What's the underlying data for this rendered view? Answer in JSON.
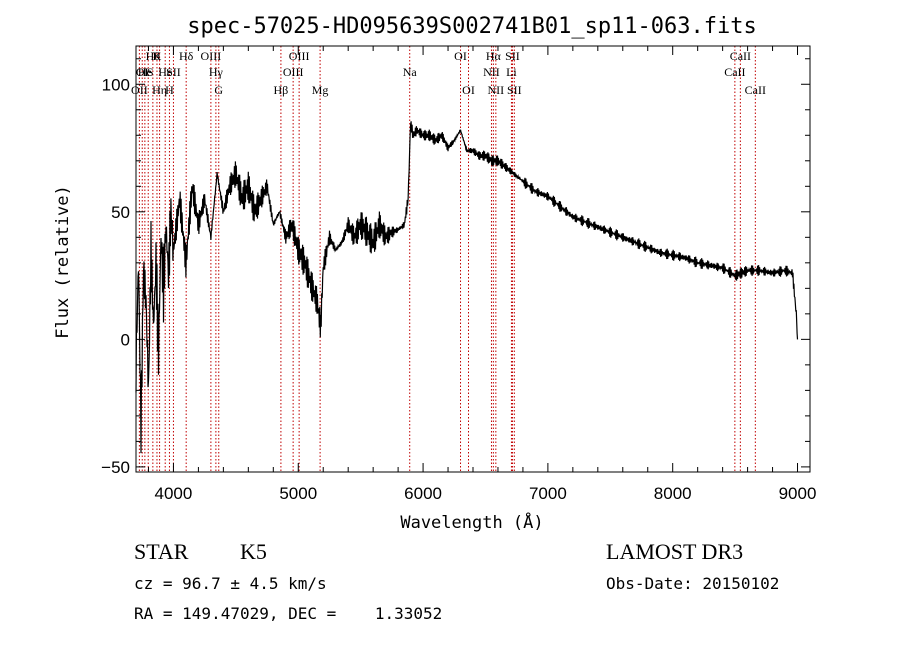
{
  "chart_data": {
    "type": "line",
    "title": "spec-57025-HD095639S002741B01_sp11-063.fits",
    "xlabel": "Wavelength (Å)",
    "ylabel": "Flux (relative)",
    "xlim": [
      3700,
      9100
    ],
    "ylim": [
      -52,
      115
    ],
    "xticks": [
      4000,
      5000,
      6000,
      7000,
      8000,
      9000
    ],
    "yticks": [
      -50,
      0,
      50,
      100
    ],
    "series": [
      {
        "name": "flux",
        "x": [
          3700,
          3720,
          3740,
          3760,
          3780,
          3800,
          3820,
          3840,
          3860,
          3880,
          3900,
          3920,
          3940,
          3960,
          3980,
          4000,
          4050,
          4100,
          4150,
          4200,
          4250,
          4300,
          4350,
          4400,
          4450,
          4500,
          4550,
          4600,
          4650,
          4700,
          4750,
          4800,
          4850,
          4900,
          4950,
          5000,
          5050,
          5100,
          5150,
          5180,
          5200,
          5250,
          5300,
          5350,
          5400,
          5450,
          5500,
          5550,
          5600,
          5650,
          5700,
          5750,
          5800,
          5850,
          5880,
          5900,
          5920,
          5950,
          6000,
          6050,
          6100,
          6150,
          6200,
          6250,
          6300,
          6350,
          6400,
          6450,
          6500,
          6550,
          6600,
          6650,
          6700,
          6750,
          6800,
          6900,
          7000,
          7100,
          7200,
          7300,
          7400,
          7500,
          7600,
          7700,
          7800,
          7900,
          8000,
          8100,
          8200,
          8300,
          8400,
          8500,
          8550,
          8600,
          8700,
          8800,
          8900,
          8960,
          8990,
          9000
        ],
        "y": [
          -10,
          30,
          -35,
          28,
          15,
          -20,
          35,
          5,
          30,
          -5,
          40,
          20,
          45,
          25,
          50,
          35,
          55,
          30,
          60,
          45,
          55,
          40,
          65,
          50,
          60,
          65,
          55,
          60,
          50,
          55,
          60,
          45,
          50,
          40,
          45,
          35,
          30,
          22,
          15,
          5,
          28,
          40,
          35,
          38,
          45,
          40,
          45,
          42,
          38,
          45,
          40,
          42,
          43,
          45,
          55,
          85,
          80,
          82,
          80,
          80,
          78,
          80,
          75,
          78,
          82,
          74,
          74,
          72,
          72,
          70,
          70,
          68,
          66,
          64,
          62,
          58,
          56,
          52,
          48,
          46,
          44,
          42,
          40,
          38,
          36,
          34,
          33,
          32,
          30,
          29,
          28,
          25,
          26,
          27,
          27,
          26,
          27,
          26,
          10,
          0
        ]
      }
    ],
    "line_markers": [
      {
        "wl": 3727,
        "row": 2,
        "label": "OII"
      },
      {
        "wl": 3750,
        "row": 1,
        "label": "OI"
      },
      {
        "wl": 3771,
        "row": 1,
        "label": "He"
      },
      {
        "wl": 3798,
        "row": 1,
        "label": "IS"
      },
      {
        "wl": 3835,
        "row": 0,
        "label": "Hθ"
      },
      {
        "wl": 3868,
        "row": 0,
        "label": "K"
      },
      {
        "wl": 3889,
        "row": 2,
        "label": "Hη"
      },
      {
        "wl": 3934,
        "row": 1,
        "label": "He"
      },
      {
        "wl": 3968,
        "row": 2,
        "label": "H"
      },
      {
        "wl": 4000,
        "row": 1,
        "label": "SII"
      },
      {
        "wl": 4102,
        "row": 0,
        "label": "Hδ"
      },
      {
        "wl": 4300,
        "row": 0,
        "label": "OIII"
      },
      {
        "wl": 4340,
        "row": 1,
        "label": "Hγ"
      },
      {
        "wl": 4363,
        "row": 2,
        "label": "G"
      },
      {
        "wl": 4861,
        "row": 2,
        "label": "Hβ"
      },
      {
        "wl": 4959,
        "row": 1,
        "label": "OIII"
      },
      {
        "wl": 5007,
        "row": 0,
        "label": "OIII"
      },
      {
        "wl": 5175,
        "row": 2,
        "label": "Mg"
      },
      {
        "wl": 5893,
        "row": 1,
        "label": "Na"
      },
      {
        "wl": 6300,
        "row": 0,
        "label": "OI"
      },
      {
        "wl": 6364,
        "row": 2,
        "label": "OI"
      },
      {
        "wl": 6548,
        "row": 1,
        "label": "NII"
      },
      {
        "wl": 6563,
        "row": 0,
        "label": "Hα"
      },
      {
        "wl": 6583,
        "row": 2,
        "label": "NII"
      },
      {
        "wl": 6708,
        "row": 1,
        "label": "Li"
      },
      {
        "wl": 6716,
        "row": 0,
        "label": "SII"
      },
      {
        "wl": 6731,
        "row": 2,
        "label": "SII"
      },
      {
        "wl": 8498,
        "row": 1,
        "label": "CaII"
      },
      {
        "wl": 8542,
        "row": 0,
        "label": "CaII"
      },
      {
        "wl": 8662,
        "row": 2,
        "label": "CaII"
      }
    ]
  },
  "info": {
    "object_type": "STAR",
    "subclass": "K5",
    "survey": "LAMOST DR3",
    "cz": "cz = 96.7 ± 4.5 km/s",
    "obs_date": "Obs-Date: 20150102",
    "coords": "RA = 149.47029, DEC =    1.33052"
  }
}
